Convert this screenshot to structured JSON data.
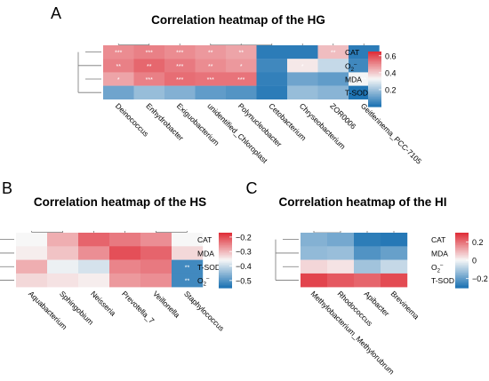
{
  "chart_data": [
    {
      "panel_label": "A",
      "type": "heatmap",
      "title": "Correlation heatmap of the HG",
      "columns": [
        "Deinococcus",
        "Enhydrobacter",
        "Exiguobacterium",
        "unidentified_Chloroplast",
        "Polynucleobacter",
        "Cetobacterium",
        "Chryseobacterium",
        "ZOR0006",
        "Geitlerinema_PCC-7105"
      ],
      "rows": [
        "CAT",
        "O2⁻",
        "MDA",
        "T-SOD"
      ],
      "rows_display": [
        {
          "base": "CAT",
          "sup": ""
        },
        {
          "base": "O",
          "sub": "2",
          "sup": "–"
        },
        {
          "base": "MDA",
          "sup": ""
        },
        {
          "base": "T-SOD",
          "sup": ""
        }
      ],
      "values": [
        [
          0.5,
          0.52,
          0.5,
          0.48,
          0.46,
          0.02,
          0.02,
          0.42,
          0.02
        ],
        [
          0.52,
          0.56,
          0.53,
          0.5,
          0.48,
          0.05,
          0.35,
          0.25,
          0.05
        ],
        [
          0.46,
          0.52,
          0.55,
          0.54,
          0.54,
          0.03,
          0.12,
          0.1,
          0.32
        ],
        [
          0.12,
          0.18,
          0.15,
          0.1,
          0.08,
          0.02,
          0.18,
          0.16,
          0.0
        ]
      ],
      "significance": [
        [
          "***",
          "***",
          "***",
          "**",
          "**",
          "",
          "",
          "**",
          ""
        ],
        [
          "**",
          "**",
          "***",
          "**",
          "*",
          "",
          "*",
          "",
          ""
        ],
        [
          "*",
          "***",
          "***",
          "***",
          "***",
          "",
          "",
          "",
          "**"
        ],
        [
          "",
          "",
          "",
          "",
          "",
          "",
          "",
          "",
          ""
        ]
      ],
      "legend": {
        "ticks": [
          0.2,
          0.4,
          0.6
        ],
        "tick_labels": [
          "0.2",
          "0.4",
          "0.6"
        ],
        "range": [
          0.0,
          0.65
        ]
      }
    },
    {
      "panel_label": "B",
      "type": "heatmap",
      "title": "Correlation heatmap of the HS",
      "columns": [
        "Aquabacterium",
        "Sphingobium",
        "Neisseria",
        "Prevotella_7",
        "Veillonella",
        "Staphylococcus"
      ],
      "rows": [
        "CAT",
        "MDA",
        "T-SOD",
        "O2⁻"
      ],
      "rows_display": [
        {
          "base": "CAT",
          "sup": ""
        },
        {
          "base": "MDA",
          "sup": ""
        },
        {
          "base": "T-SOD",
          "sup": ""
        },
        {
          "base": "O",
          "sub": "2",
          "sup": "–"
        }
      ],
      "values": [
        [
          -0.36,
          -0.29,
          -0.22,
          -0.24,
          -0.26,
          -0.36
        ],
        [
          -0.35,
          -0.31,
          -0.26,
          -0.2,
          -0.22,
          -0.33
        ],
        [
          -0.29,
          -0.37,
          -0.39,
          -0.25,
          -0.24,
          -0.52
        ],
        [
          -0.33,
          -0.34,
          -0.35,
          -0.27,
          -0.26,
          -0.52
        ]
      ],
      "significance": [
        [
          "",
          "",
          "",
          "",
          "",
          ""
        ],
        [
          "",
          "",
          "",
          "",
          "",
          ""
        ],
        [
          "",
          "",
          "",
          "",
          "",
          "**"
        ],
        [
          "",
          "",
          "",
          "",
          "",
          "**"
        ]
      ],
      "legend": {
        "ticks": [
          -0.2,
          -0.3,
          -0.4,
          -0.5
        ],
        "tick_labels": [
          "−0.2",
          "−0.3",
          "−0.4",
          "−0.5"
        ],
        "range": [
          -0.55,
          -0.17
        ]
      }
    },
    {
      "panel_label": "C",
      "type": "heatmap",
      "title": "Correlation heatmap of the HI",
      "columns": [
        "Methylobacterium_Methylorubrum",
        "Rhodococcus",
        "Apibacter",
        "Brevinema"
      ],
      "rows": [
        "CAT",
        "MDA",
        "O2⁻",
        "T-SOD"
      ],
      "rows_display": [
        {
          "base": "CAT",
          "sup": ""
        },
        {
          "base": "MDA",
          "sup": ""
        },
        {
          "base": "O",
          "sub": "2",
          "sup": "–"
        },
        {
          "base": "T-SOD",
          "sup": ""
        }
      ],
      "values": [
        [
          -0.16,
          -0.18,
          -0.28,
          -0.29
        ],
        [
          -0.14,
          -0.13,
          -0.23,
          -0.2
        ],
        [
          0.05,
          0.03,
          -0.12,
          -0.07
        ],
        [
          0.27,
          0.24,
          0.22,
          0.26
        ]
      ],
      "significance": [
        [
          "",
          "",
          "",
          ""
        ],
        [
          "",
          "",
          "",
          ""
        ],
        [
          "",
          "",
          "",
          ""
        ],
        [
          "",
          "",
          "",
          ""
        ]
      ],
      "legend": {
        "ticks": [
          0.2,
          0,
          -0.2
        ],
        "tick_labels": [
          "0.2",
          "0",
          "−0.2"
        ],
        "range": [
          -0.3,
          0.3
        ]
      }
    }
  ]
}
